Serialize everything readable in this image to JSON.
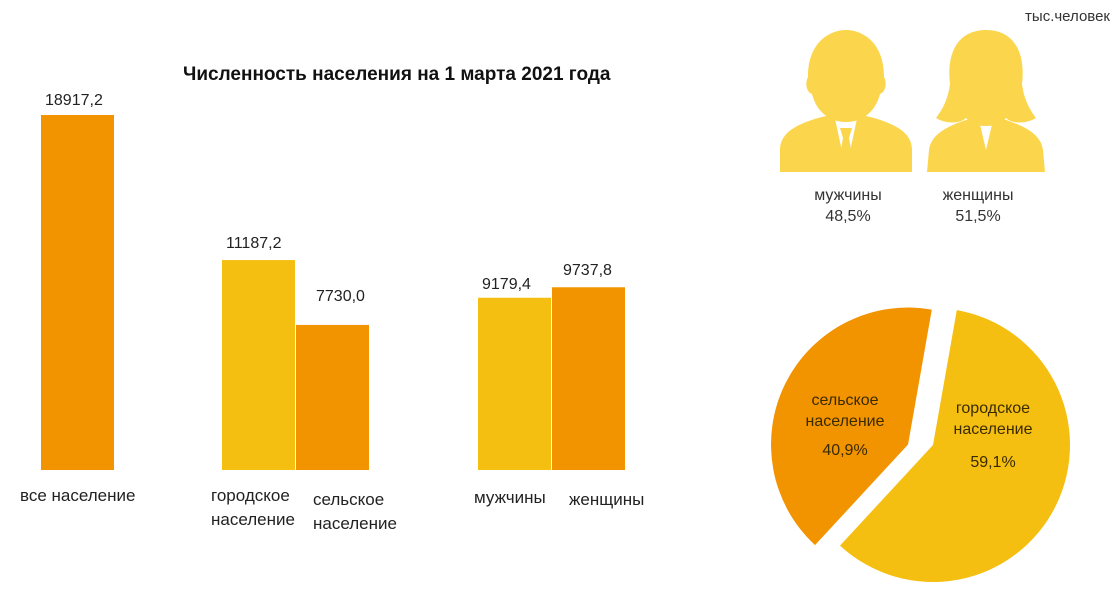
{
  "chart_data": [
    {
      "type": "bar",
      "title": "Численность населения на 1 марта 2021 года",
      "unit": "тыс.человек",
      "groups": [
        {
          "bars": [
            {
              "category": "все население",
              "value": 18917.2,
              "label": "18917,2",
              "color": "#f29400"
            }
          ]
        },
        {
          "bars": [
            {
              "category": "городское население",
              "value": 11187.2,
              "label": "11187,2",
              "color": "#f5bf12"
            },
            {
              "category": "сельское население",
              "value": 7730.0,
              "label": "7730,0",
              "color": "#f29400"
            }
          ]
        },
        {
          "bars": [
            {
              "category": "мужчины",
              "value": 9179.4,
              "label": "9179,4",
              "color": "#f5bf12"
            },
            {
              "category": "женщины",
              "value": 9737.8,
              "label": "9737,8",
              "color": "#f29400"
            }
          ]
        }
      ],
      "ylim": [
        0,
        18917.2
      ],
      "grid": false
    },
    {
      "type": "pie",
      "slices": [
        {
          "name": "сельское население",
          "value": 40.9,
          "label": "40,9%",
          "color": "#f29400"
        },
        {
          "name": "городское население",
          "value": 59.1,
          "label": "59,1%",
          "color": "#f5bf12"
        }
      ]
    }
  ],
  "gender": {
    "men": {
      "label": "мужчины",
      "percent": "48,5%",
      "icon": "man-silhouette-icon"
    },
    "women": {
      "label": "женщины",
      "percent": "51,5%",
      "icon": "woman-silhouette-icon"
    },
    "icon_color": "#fbd54c"
  }
}
